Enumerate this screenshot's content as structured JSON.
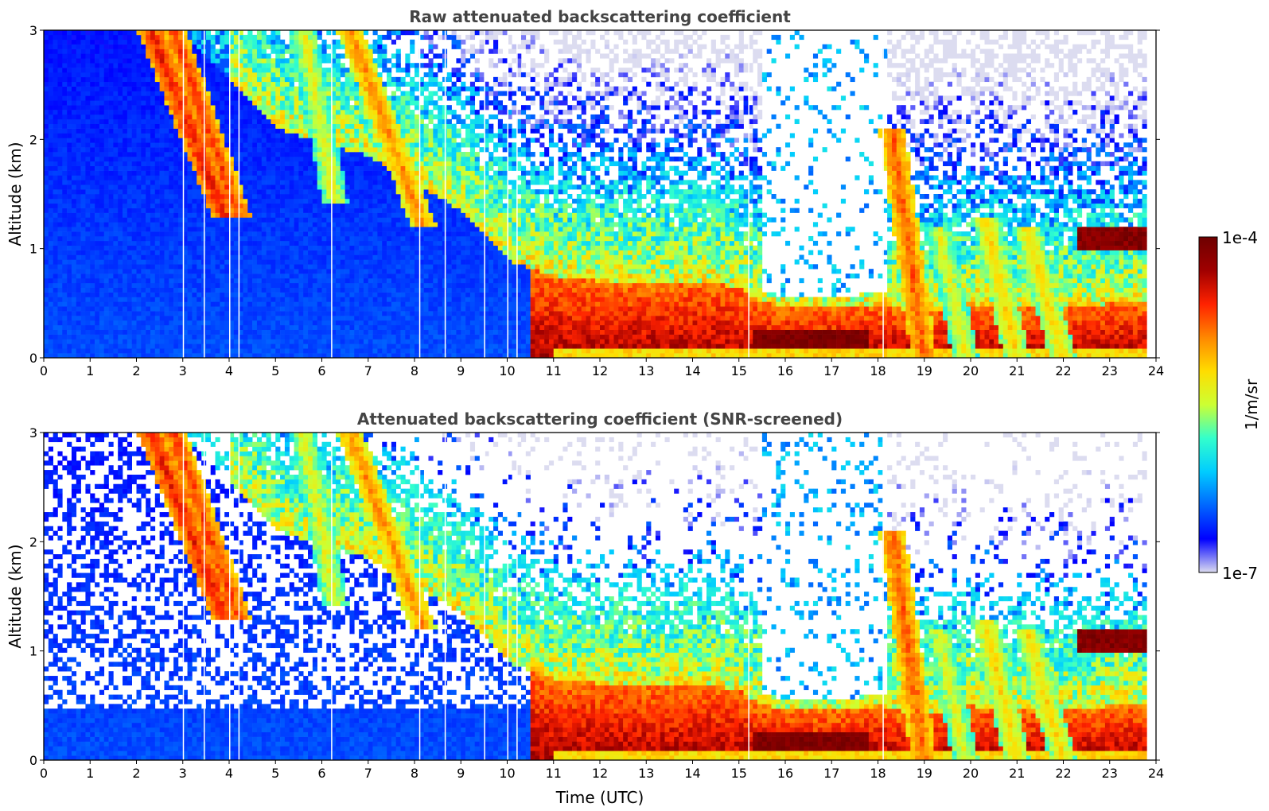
{
  "chart_data": [
    {
      "type": "heatmap",
      "title": "Raw attenuated backscattering coefficient",
      "xlabel": "",
      "ylabel": "Altitude (km)",
      "xlim": [
        0,
        24
      ],
      "ylim": [
        0,
        3
      ],
      "x_ticks": [
        "0",
        "1",
        "2",
        "3",
        "4",
        "5",
        "6",
        "7",
        "8",
        "9",
        "10",
        "11",
        "12",
        "13",
        "14",
        "15",
        "16",
        "17",
        "18",
        "19",
        "20",
        "21",
        "22",
        "23",
        "24"
      ],
      "y_ticks": [
        "0",
        "1",
        "2",
        "3"
      ],
      "screened": false,
      "cloud_base_km": [
        {
          "t": 0,
          "km": 3.0
        },
        {
          "t": 3,
          "km": 3.0
        },
        {
          "t": 5,
          "km": 2.1
        },
        {
          "t": 7,
          "km": 1.85
        },
        {
          "t": 9,
          "km": 1.35
        },
        {
          "t": 10,
          "km": 0.9
        },
        {
          "t": 11,
          "km": 0.75
        },
        {
          "t": 12,
          "km": 0.7
        },
        {
          "t": 13,
          "km": 0.68
        },
        {
          "t": 14,
          "km": 0.7
        },
        {
          "t": 15,
          "km": 0.65
        },
        {
          "t": 15.3,
          "km": 0.55
        },
        {
          "t": 16,
          "km": 0.45
        },
        {
          "t": 17,
          "km": 0.45
        },
        {
          "t": 18,
          "km": 0.5
        },
        {
          "t": 19,
          "km": 0.4
        },
        {
          "t": 20,
          "km": 0.5
        },
        {
          "t": 21,
          "km": 0.45
        },
        {
          "t": 22,
          "km": 0.45
        },
        {
          "t": 23,
          "km": 0.5
        },
        {
          "t": 23.8,
          "km": 0.5
        }
      ],
      "virga_streaks": [
        {
          "t_top": 2.3,
          "t_bottom": 3.9,
          "alt_top": 3.0,
          "alt_bottom": 1.3,
          "level": 0.82
        },
        {
          "t_top": 2.8,
          "t_bottom": 4.2,
          "alt_top": 3.0,
          "alt_bottom": 1.3,
          "level": 0.78
        },
        {
          "t_top": 5.6,
          "t_bottom": 6.3,
          "alt_top": 3.0,
          "alt_bottom": 1.4,
          "level": 0.55
        },
        {
          "t_top": 6.6,
          "t_bottom": 8.2,
          "alt_top": 3.0,
          "alt_bottom": 1.2,
          "level": 0.7
        },
        {
          "t_top": 18.3,
          "t_bottom": 19.0,
          "alt_top": 2.1,
          "alt_bottom": 0.0,
          "level": 0.75
        },
        {
          "t_top": 19.3,
          "t_bottom": 19.9,
          "alt_top": 1.2,
          "alt_bottom": 0.0,
          "level": 0.55
        },
        {
          "t_top": 20.3,
          "t_bottom": 21.0,
          "alt_top": 1.3,
          "alt_bottom": 0.0,
          "level": 0.6
        },
        {
          "t_top": 21.2,
          "t_bottom": 22.0,
          "alt_top": 1.2,
          "alt_bottom": 0.0,
          "level": 0.6
        }
      ],
      "elevated_layer": {
        "t_start": 22.3,
        "t_end": 23.8,
        "alt_km": 1.1,
        "level": 0.95
      },
      "surface_max": {
        "t_start": 15.3,
        "t_end": 17.8,
        "level": 1.0
      },
      "gaps_utc": [
        3.0,
        3.45,
        4.0,
        4.2,
        6.2,
        8.1,
        8.65,
        9.5,
        10.0,
        10.2,
        15.2,
        18.1
      ]
    },
    {
      "type": "heatmap",
      "title": "Attenuated backscattering coefficient (SNR-screened)",
      "xlabel": "Time (UTC)",
      "ylabel": "Altitude (km)",
      "xlim": [
        0,
        24
      ],
      "ylim": [
        0,
        3
      ],
      "x_ticks": [
        "0",
        "1",
        "2",
        "3",
        "4",
        "5",
        "6",
        "7",
        "8",
        "9",
        "10",
        "11",
        "12",
        "13",
        "14",
        "15",
        "16",
        "17",
        "18",
        "19",
        "20",
        "21",
        "22",
        "23",
        "24"
      ],
      "y_ticks": [
        "0",
        "1",
        "2",
        "3"
      ],
      "screened": true
    }
  ],
  "colorbar": {
    "label": "1/m/sr",
    "max_label": "1e-4",
    "min_label": "1e-7",
    "scale": "log",
    "colormap": [
      "#dcdcf0",
      "#0000ff",
      "#0066ff",
      "#00ccff",
      "#33ffcc",
      "#ccff33",
      "#ffdd00",
      "#ff8800",
      "#ff2200",
      "#a00000",
      "#6e0000"
    ]
  }
}
